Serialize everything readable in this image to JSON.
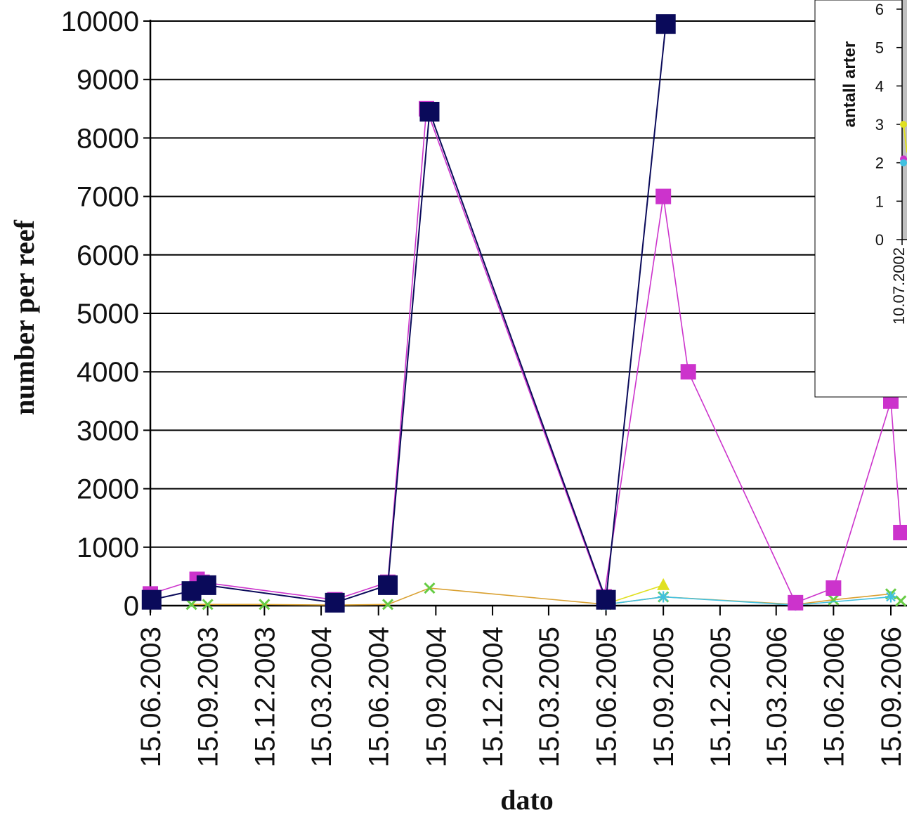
{
  "chart_data": [
    {
      "type": "line",
      "xlabel": "dato",
      "ylabel": "number per reef",
      "ylim": [
        0,
        10000
      ],
      "yticks": [
        0,
        1000,
        2000,
        3000,
        4000,
        5000,
        6000,
        7000,
        8000,
        9000,
        10000
      ],
      "xticks": [
        "15.06.2003",
        "15.09.2003",
        "15.12.2003",
        "15.03.2004",
        "15.06.2004",
        "15.09.2004",
        "15.12.2004",
        "15.03.2005",
        "15.06.2005",
        "15.09.2005",
        "15.12.2005",
        "15.03.2006",
        "15.06.2006",
        "15.09.2006"
      ],
      "grid": true,
      "series": [
        {
          "color": "#0a0a5a",
          "marker": "square",
          "points": [
            {
              "x": "17.06.2003",
              "y": 100
            },
            {
              "x": "20.08.2003",
              "y": 250
            },
            {
              "x": "13.09.2003",
              "y": 350
            },
            {
              "x": "06.04.2004",
              "y": 50
            },
            {
              "x": "30.06.2004",
              "y": 350
            },
            {
              "x": "05.09.2004",
              "y": 8450
            },
            {
              "x": "15.06.2005",
              "y": 100
            },
            {
              "x": "19.09.2005",
              "y": 9950
            }
          ]
        },
        {
          "color": "#cc33cc",
          "marker": "square",
          "points": [
            {
              "x": "15.06.2003",
              "y": 200
            },
            {
              "x": "29.08.2003",
              "y": 450
            },
            {
              "x": "06.09.2003",
              "y": 400
            },
            {
              "x": "06.04.2004",
              "y": 100
            },
            {
              "x": "30.06.2004",
              "y": 400
            },
            {
              "x": "31.08.2004",
              "y": 8500
            },
            {
              "x": "12.06.2005",
              "y": 150
            },
            {
              "x": "15.09.2005",
              "y": 7000
            },
            {
              "x": "25.10.2005",
              "y": 4000
            },
            {
              "x": "15.04.2006",
              "y": 50
            },
            {
              "x": "15.06.2006",
              "y": 300
            },
            {
              "x": "15.09.2006",
              "y": 3500
            },
            {
              "x": "01.10.2006",
              "y": 1250
            }
          ]
        },
        {
          "color": "#d9a030",
          "marker": "cross",
          "points": [
            {
              "x": "20.08.2003",
              "y": 20
            },
            {
              "x": "15.09.2003",
              "y": 20
            },
            {
              "x": "15.12.2003",
              "y": 20
            },
            {
              "x": "06.04.2004",
              "y": 10
            },
            {
              "x": "30.06.2004",
              "y": 20
            },
            {
              "x": "05.09.2004",
              "y": 300
            },
            {
              "x": "15.06.2005",
              "y": 20
            },
            {
              "x": "15.09.2005",
              "y": 150
            },
            {
              "x": "15.04.2006",
              "y": 20
            },
            {
              "x": "15.06.2006",
              "y": 100
            },
            {
              "x": "15.09.2006",
              "y": 200
            },
            {
              "x": "01.10.2006",
              "y": 80
            }
          ]
        },
        {
          "color": "#e0e020",
          "marker": "triangle",
          "points": [
            {
              "x": "15.06.2005",
              "y": 30
            },
            {
              "x": "15.09.2005",
              "y": 350
            }
          ]
        },
        {
          "color": "#40c0e0",
          "marker": "star",
          "points": [
            {
              "x": "15.06.2005",
              "y": 20
            },
            {
              "x": "15.09.2005",
              "y": 150
            },
            {
              "x": "15.04.2006",
              "y": 10
            },
            {
              "x": "15.09.2006",
              "y": 150
            }
          ]
        }
      ]
    },
    {
      "type": "line",
      "ylabel": "antall arter",
      "ylim": [
        0,
        6
      ],
      "yticks": [
        0,
        1,
        2,
        3,
        4,
        5,
        6
      ],
      "xticks": [
        "10.07.2002"
      ],
      "series": [
        {
          "color": "#e0e020",
          "points": [
            {
              "x": "10.07.2002",
              "y": 3
            }
          ]
        },
        {
          "color": "#cc33cc",
          "points": [
            {
              "x": "10.07.2002",
              "y": 2.1
            }
          ]
        },
        {
          "color": "#40c0e0",
          "points": [
            {
              "x": "10.07.2002",
              "y": 2
            }
          ]
        }
      ]
    }
  ]
}
